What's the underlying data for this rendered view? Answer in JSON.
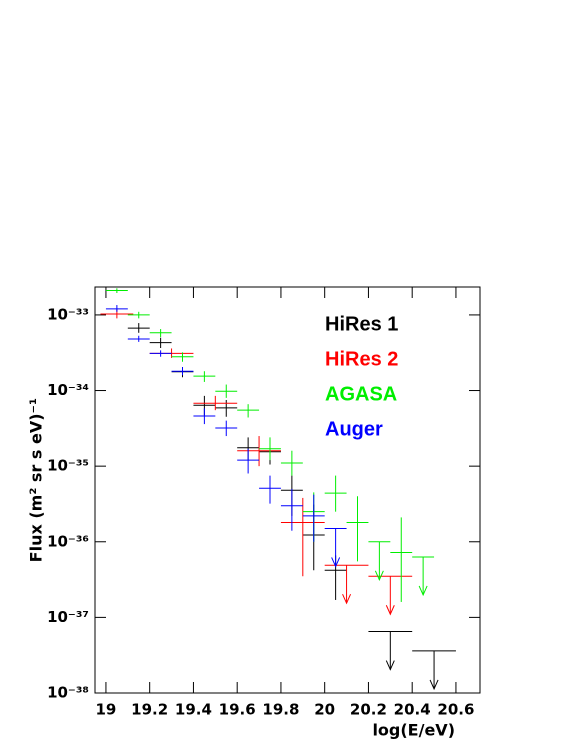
{
  "chart_data": {
    "type": "scatter",
    "x_label": "log(E/eV)",
    "y_label": "Flux (m² sr s eV)⁻¹",
    "log_y": true,
    "xlim": [
      18.95,
      20.71
    ],
    "ylim": [
      1e-38,
      2.34e-33
    ],
    "xticks": [
      19,
      19.2,
      19.4,
      19.6,
      19.8,
      20,
      20.2,
      20.4,
      20.6
    ],
    "yticks": [
      {
        "value": 1e-33,
        "label": "10⁻³³"
      },
      {
        "value": 1e-34,
        "label": "10⁻³⁴"
      },
      {
        "value": 1e-35,
        "label": "10⁻³⁵"
      },
      {
        "value": 1e-36,
        "label": "10⁻³⁶"
      },
      {
        "value": 1e-37,
        "label": "10⁻³⁷"
      },
      {
        "value": 1e-38,
        "label": "10⁻³⁸"
      }
    ],
    "series": [
      {
        "name": "HiRes 1",
        "color": "#000000",
        "x": [
          19.15,
          19.25,
          19.35,
          19.45,
          19.55,
          19.65,
          19.75,
          19.85,
          19.95,
          20.05,
          20.3,
          20.5
        ],
        "xerr": [
          0.05,
          0.05,
          0.05,
          0.05,
          0.05,
          0.05,
          0.05,
          0.05,
          0.05,
          0.05,
          0.1,
          0.1
        ],
        "values": [
          6.7e-34,
          4.3e-34,
          1.77e-34,
          6.4e-35,
          5.9e-35,
          1.75e-35,
          1.55e-35,
          4.8e-36,
          1.23e-36,
          4.2e-37,
          6.5e-38,
          3.6e-38
        ],
        "ylow": [
          5.8e-34,
          3.65e-34,
          1.5e-34,
          4.7e-35,
          4.5e-35,
          1.2e-35,
          1.05e-35,
          2.2e-36,
          4.2e-37,
          1.7e-37,
          null,
          null
        ],
        "yhigh": [
          7.8e-34,
          5e-34,
          2.05e-34,
          8.5e-35,
          7.5e-35,
          2.4e-35,
          2.2e-35,
          7.5e-36,
          3.1e-36,
          6.6e-37,
          null,
          null
        ],
        "upper_limit": [
          false,
          false,
          false,
          false,
          false,
          false,
          false,
          false,
          false,
          false,
          true,
          true
        ]
      },
      {
        "name": "HiRes 2",
        "color": "#ff0000",
        "x": [
          19.05,
          19.3,
          19.5,
          19.7,
          19.9,
          20.1,
          20.3
        ],
        "xerr": [
          0.075,
          0.1,
          0.1,
          0.1,
          0.1,
          0.1,
          0.1
        ],
        "values": [
          1.03e-33,
          3.1e-34,
          6.8e-35,
          1.6e-35,
          1.8e-36,
          4.9e-37,
          3.5e-37
        ],
        "ylow": [
          9e-34,
          2.7e-34,
          5.5e-35,
          1e-35,
          3.5e-37,
          null,
          null
        ],
        "yhigh": [
          1.2e-33,
          3.6e-34,
          8.5e-35,
          2.5e-35,
          3.8e-36,
          null,
          null
        ],
        "upper_limit": [
          false,
          false,
          false,
          false,
          false,
          true,
          true
        ]
      },
      {
        "name": "AGASA",
        "color": "#00ee00",
        "x": [
          19.05,
          19.15,
          19.25,
          19.35,
          19.45,
          19.55,
          19.65,
          19.75,
          19.85,
          19.95,
          20.05,
          20.15,
          20.25,
          20.35,
          20.45
        ],
        "xerr": [
          0.05,
          0.05,
          0.05,
          0.05,
          0.05,
          0.05,
          0.05,
          0.05,
          0.05,
          0.05,
          0.05,
          0.05,
          0.05,
          0.05,
          0.05
        ],
        "values": [
          2.1e-33,
          1e-33,
          5.8e-34,
          2.8e-34,
          1.55e-34,
          9.8e-35,
          5.5e-35,
          1.7e-35,
          1.1e-35,
          2.5e-36,
          4.4e-36,
          1.8e-36,
          1e-36,
          7.2e-37,
          6.3e-37
        ],
        "ylow": [
          1.95e-33,
          9e-34,
          5.1e-34,
          2.4e-34,
          1.3e-34,
          8e-35,
          4.4e-35,
          1.2e-35,
          7.5e-36,
          1e-36,
          2.5e-36,
          5.5e-37,
          null,
          1.6e-37,
          null
        ],
        "yhigh": [
          2.25e-33,
          1.1e-33,
          6.5e-34,
          3.2e-34,
          1.8e-34,
          1.2e-34,
          6.6e-35,
          2.4e-35,
          1.6e-35,
          4.5e-36,
          7.5e-36,
          4e-36,
          null,
          2.1e-36,
          null
        ],
        "upper_limit": [
          false,
          false,
          false,
          false,
          false,
          false,
          false,
          false,
          false,
          false,
          false,
          false,
          true,
          false,
          true
        ]
      },
      {
        "name": "Auger",
        "color": "#0000ff",
        "x": [
          19.05,
          19.15,
          19.25,
          19.35,
          19.45,
          19.55,
          19.65,
          19.75,
          19.85,
          19.95,
          20.05
        ],
        "xerr": [
          0.05,
          0.05,
          0.05,
          0.05,
          0.05,
          0.05,
          0.05,
          0.05,
          0.05,
          0.05,
          0.05
        ],
        "values": [
          1.2e-33,
          4.8e-34,
          3.1e-34,
          1.8e-34,
          4.6e-35,
          3.2e-35,
          1.2e-35,
          5.1e-36,
          3e-36,
          2.2e-36,
          1.5e-36
        ],
        "ylow": [
          1.1e-33,
          4.4e-34,
          2.8e-34,
          1.6e-34,
          3.6e-35,
          2.5e-35,
          8e-36,
          3.2e-36,
          1.4e-36,
          1e-36,
          null
        ],
        "yhigh": [
          1.35e-33,
          5.3e-34,
          3.4e-34,
          2.05e-34,
          5.8e-35,
          4e-35,
          1.7e-35,
          7.5e-36,
          5e-36,
          4.2e-36,
          null
        ],
        "upper_limit": [
          false,
          false,
          false,
          false,
          false,
          false,
          false,
          false,
          false,
          false,
          true
        ]
      }
    ]
  }
}
